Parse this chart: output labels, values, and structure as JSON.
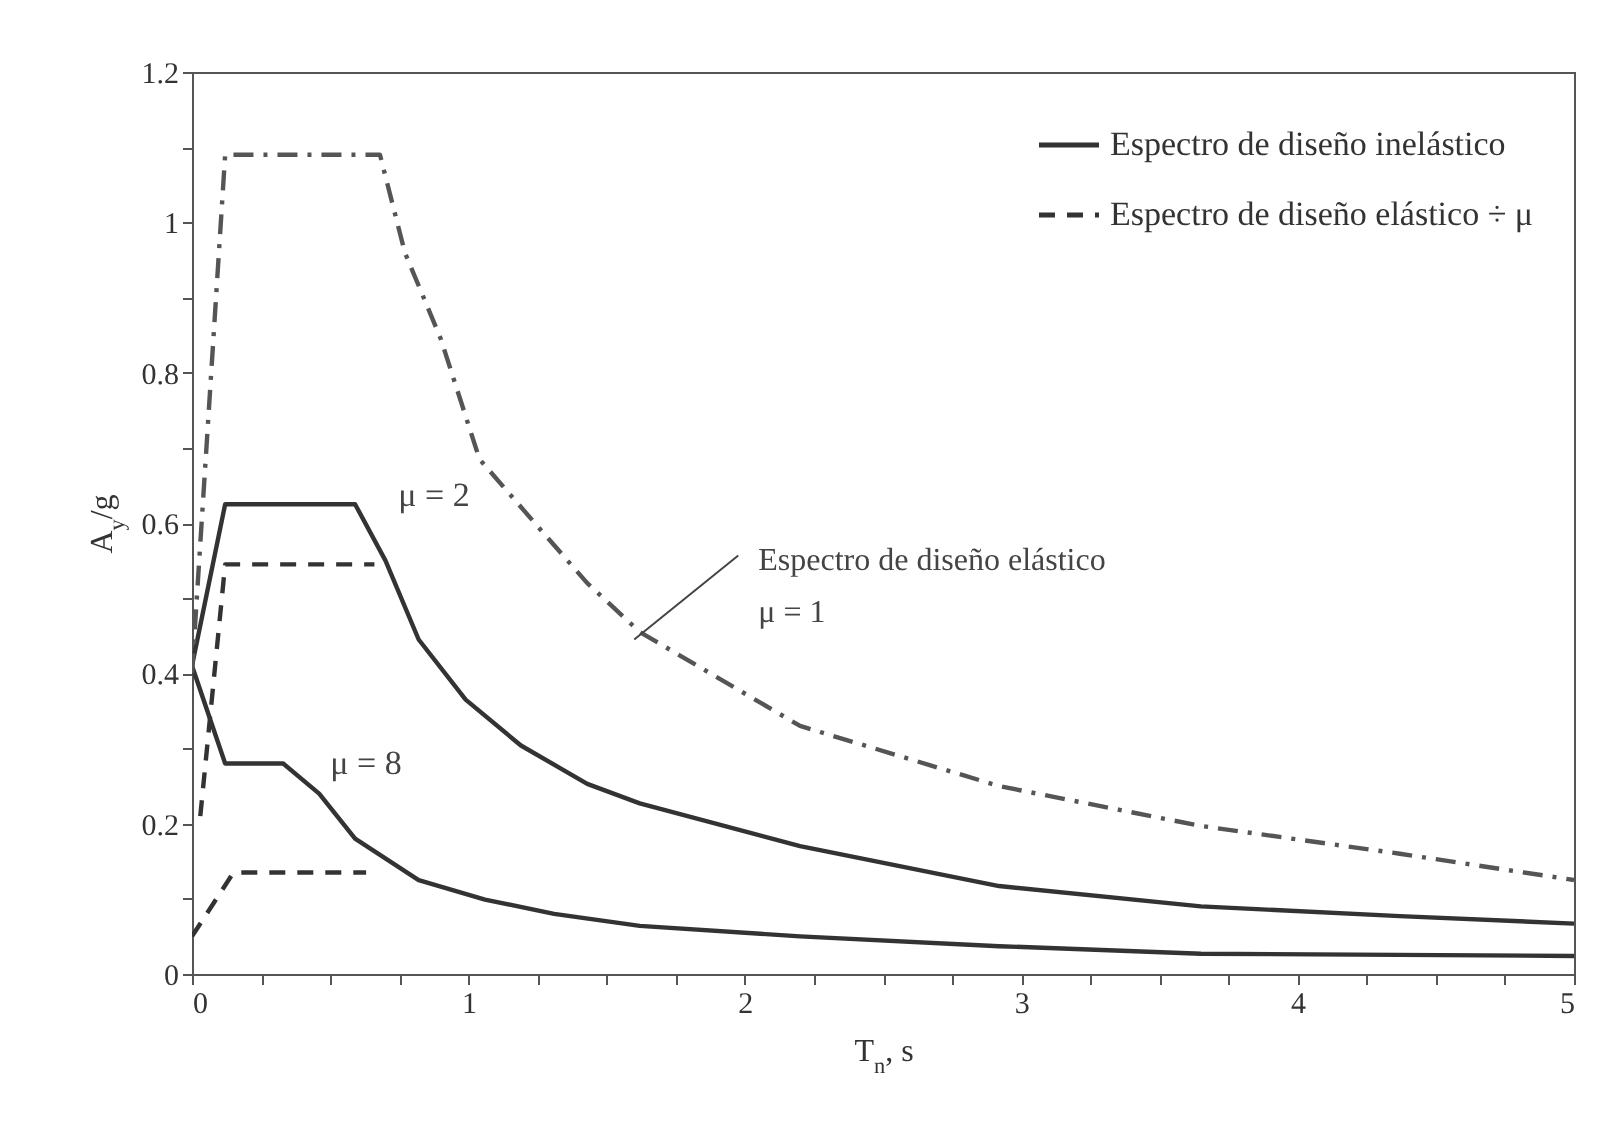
{
  "chart_data": {
    "type": "line",
    "xlabel": "T$_{n}$, s",
    "ylabel": "A$_{y}$/g",
    "xlim": [
      0,
      5
    ],
    "ylim": [
      0,
      1.2
    ],
    "xticks": [
      0,
      {
        "value": 0.25,
        "label": null
      },
      {
        "value": 0.5,
        "label": null
      },
      {
        "value": 0.75,
        "label": null
      },
      1,
      {
        "value": 1.25,
        "label": null
      },
      {
        "value": 1.5,
        "label": null
      },
      {
        "value": 1.75,
        "label": null
      },
      2,
      {
        "value": 2.25,
        "label": null
      },
      {
        "value": 2.5,
        "label": null
      },
      {
        "value": 2.75,
        "label": null
      },
      3,
      {
        "value": 3.25,
        "label": null
      },
      {
        "value": 3.5,
        "label": null
      },
      {
        "value": 3.75,
        "label": null
      },
      4,
      {
        "value": 4.25,
        "label": null
      },
      {
        "value": 4.5,
        "label": null
      },
      {
        "value": 4.75,
        "label": null
      },
      5
    ],
    "yticks": [
      0,
      {
        "value": 0.1,
        "label": null
      },
      0.2,
      {
        "value": 0.3,
        "label": null
      },
      0.4,
      {
        "value": 0.5,
        "label": null
      },
      0.6,
      {
        "value": 0.7,
        "label": null
      },
      0.8,
      {
        "value": 0.9,
        "label": null
      },
      1,
      {
        "value": 1.1,
        "label": null
      },
      1.2
    ],
    "grid": false,
    "legend": "top right",
    "marker": "none",
    "series": [
      {
        "name": "Espectro de diseño inelástico",
        "color": "#333333",
        "line_style": "solid",
        "x": [
          0,
          0.12,
          0.59,
          0.7,
          0.82,
          0.99,
          1.19,
          1.43,
          1.62,
          2.2,
          2.92,
          3.65,
          4.37,
          5
        ],
        "values": [
          0.41,
          0.625,
          0.625,
          0.55,
          0.445,
          0.365,
          0.304,
          0.253,
          0.227,
          0.17,
          0.117,
          0.09,
          0.077,
          0.067
        ]
      },
      {
        "color": "#333333",
        "line_style": "solid",
        "x": [
          0,
          0.12,
          0.33,
          0.46,
          0.59,
          0.82,
          1.06,
          1.31,
          1.62,
          2.2,
          2.92,
          3.65,
          5
        ],
        "values": [
          0.41,
          0.28,
          0.28,
          0.24,
          0.18,
          0.125,
          0.099,
          0.08,
          0.064,
          0.05,
          0.037,
          0.027,
          0.024
        ]
      },
      {
        "name": "Espectro de diseño elástico ÷ μ",
        "color": "#333333",
        "line_style": "dashed",
        "x": [
          0.03,
          0.12,
          0.66
        ],
        "values": [
          0.21,
          0.545,
          0.545
        ]
      },
      {
        "color": "#333333",
        "line_style": "dashed",
        "x": [
          0,
          0.15,
          0.63
        ],
        "values": [
          0.05,
          0.135,
          0.135
        ]
      },
      {
        "color": "#555555",
        "line_style": "dashdot",
        "x": [
          0,
          0.12,
          0.68,
          0.77,
          0.9,
          1.04,
          1.24,
          1.43,
          1.62,
          2.2,
          2.92,
          3.65,
          4.37,
          5
        ],
        "values": [
          0.4,
          1.09,
          1.09,
          0.96,
          0.845,
          0.685,
          0.6,
          0.52,
          0.455,
          0.33,
          0.25,
          0.197,
          0.16,
          0.125
        ]
      }
    ],
    "annotations": [
      "μ = 2",
      "μ = 8",
      {
        "text": "Espectro de diseño elástico\nμ = 1",
        "x": 1.6,
        "y": 0.445
      }
    ]
  }
}
